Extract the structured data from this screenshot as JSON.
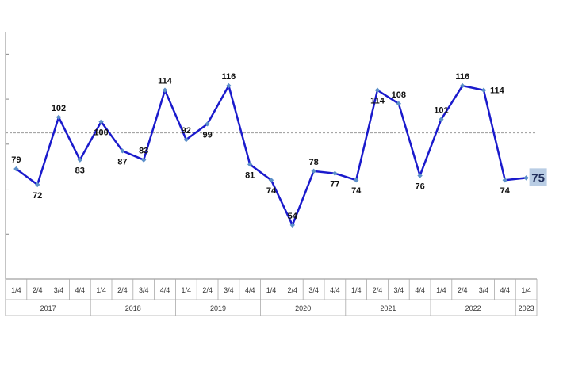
{
  "chart_data": {
    "type": "line",
    "title": "",
    "xlabel": "",
    "ylabel": "",
    "ylim": [
      30,
      140
    ],
    "y_gridlines": false,
    "reference_line": {
      "value": 95,
      "style": "dashed",
      "color": "#999999"
    },
    "line_color": "#1a1acc",
    "marker_color": "#5b8fc9",
    "highlight_bg": "#b9cde4",
    "years": [
      {
        "label": "2017",
        "quarters": 4
      },
      {
        "label": "2018",
        "quarters": 4
      },
      {
        "label": "2019",
        "quarters": 4
      },
      {
        "label": "2020",
        "quarters": 4
      },
      {
        "label": "2021",
        "quarters": 4
      },
      {
        "label": "2022",
        "quarters": 4
      },
      {
        "label": "2023",
        "quarters": 1
      }
    ],
    "categories": [
      "1/4",
      "2/4",
      "3/4",
      "4/4",
      "1/4",
      "2/4",
      "3/4",
      "4/4",
      "1/4",
      "2/4",
      "3/4",
      "4/4",
      "1/4",
      "2/4",
      "3/4",
      "4/4",
      "1/4",
      "2/4",
      "3/4",
      "4/4",
      "1/4",
      "2/4",
      "3/4",
      "4/4",
      "1/4"
    ],
    "values": [
      79,
      72,
      102,
      83,
      100,
      87,
      83,
      114,
      92,
      99,
      116,
      81,
      74,
      54,
      78,
      77,
      74,
      114,
      108,
      76,
      101,
      116,
      114,
      74,
      75
    ],
    "labels": [
      "79",
      "72",
      "102",
      "83",
      "100",
      "87",
      "83",
      "114",
      "92",
      "99",
      "116",
      "81",
      "74",
      "54",
      "78",
      "77",
      "74",
      "114",
      "108",
      "76",
      "101",
      "116",
      "114",
      "74",
      "75"
    ],
    "label_positions": [
      "above",
      "below",
      "above",
      "below",
      "below",
      "below",
      "above",
      "above",
      "above",
      "below",
      "above",
      "below",
      "below",
      "above",
      "above",
      "below",
      "below",
      "below",
      "above",
      "below",
      "above",
      "above",
      "right",
      "below",
      "highlight"
    ]
  }
}
